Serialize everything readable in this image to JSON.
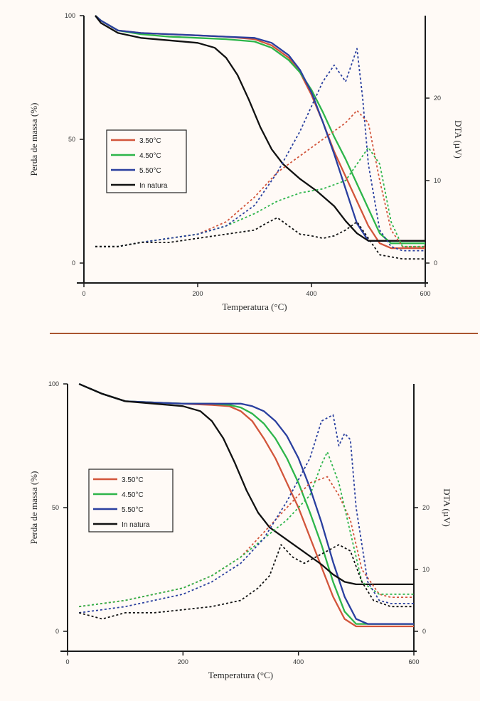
{
  "chart_data": [
    {
      "type": "line",
      "xlabel": "Temperatura (°C)",
      "ylabel_left": "Perda de massa (%)",
      "ylabel_right": "DTA (µV)",
      "xlim": [
        0,
        600
      ],
      "ylim_left": [
        0,
        100
      ],
      "ylim_right": [
        0,
        30
      ],
      "xticks": [
        "0",
        "200",
        "400",
        "600"
      ],
      "yticks_left": [
        "0",
        "50",
        "100"
      ],
      "yticks_right": [
        "0",
        "10",
        "20"
      ],
      "legend_position": "center-left",
      "series": [
        {
          "name": "3.50°C",
          "color": "#d2553b",
          "style": "solid",
          "axis": "left",
          "x": [
            20,
            30,
            60,
            100,
            150,
            200,
            250,
            300,
            330,
            360,
            380,
            400,
            420,
            440,
            460,
            480,
            500,
            520,
            540,
            560,
            600
          ],
          "y": [
            100,
            98,
            94,
            93,
            92.5,
            92,
            91.5,
            90.5,
            88,
            83,
            77,
            68,
            57,
            45,
            35,
            25,
            15,
            8,
            6,
            6,
            6
          ]
        },
        {
          "name": "4.50°C",
          "color": "#2db54a",
          "style": "solid",
          "axis": "left",
          "x": [
            20,
            30,
            60,
            100,
            150,
            200,
            250,
            300,
            330,
            360,
            380,
            400,
            420,
            440,
            460,
            480,
            500,
            520,
            540,
            560,
            600
          ],
          "y": [
            100,
            98,
            94,
            92.5,
            91.5,
            91,
            90.5,
            89.5,
            87,
            82,
            77,
            70,
            61,
            51,
            42,
            32,
            22,
            12,
            8,
            8,
            8
          ]
        },
        {
          "name": "5.50°C",
          "color": "#2a3f9f",
          "style": "solid",
          "axis": "left",
          "x": [
            20,
            30,
            60,
            100,
            150,
            200,
            250,
            300,
            330,
            360,
            380,
            400,
            420,
            440,
            460,
            480,
            500,
            520,
            560,
            600
          ],
          "y": [
            100,
            98,
            94,
            93,
            92.5,
            92,
            91.5,
            91,
            89,
            84,
            78,
            69,
            57,
            44,
            30,
            16,
            9,
            9,
            9,
            9
          ]
        },
        {
          "name": "In natura",
          "color": "#111111",
          "style": "solid",
          "axis": "left",
          "x": [
            20,
            30,
            60,
            100,
            150,
            200,
            230,
            250,
            270,
            290,
            310,
            330,
            350,
            380,
            410,
            440,
            460,
            480,
            500,
            520,
            560,
            600
          ],
          "y": [
            100,
            97,
            93,
            91,
            90,
            89,
            87,
            83,
            76,
            66,
            55,
            46,
            40,
            34,
            29,
            23,
            17,
            12,
            9,
            9,
            9,
            9
          ]
        },
        {
          "name": "",
          "color": "#d2553b",
          "style": "dash",
          "axis": "right",
          "x": [
            20,
            60,
            100,
            150,
            200,
            250,
            300,
            340,
            380,
            420,
            460,
            480,
            500,
            520,
            540,
            560,
            600
          ],
          "y": [
            2,
            2,
            2.5,
            3,
            3.5,
            5,
            8,
            11,
            13,
            15,
            17,
            18.5,
            17,
            10,
            4,
            2,
            2
          ]
        },
        {
          "name": "",
          "color": "#2db54a",
          "style": "dash",
          "axis": "right",
          "x": [
            20,
            60,
            100,
            150,
            200,
            250,
            300,
            340,
            380,
            420,
            460,
            480,
            500,
            520,
            540,
            560,
            600
          ],
          "y": [
            2,
            2,
            2.5,
            3,
            3.5,
            4.5,
            6,
            7.5,
            8.5,
            9,
            10,
            12,
            14,
            12,
            5,
            2,
            2
          ]
        },
        {
          "name": "",
          "color": "#2a3f9f",
          "style": "dash",
          "axis": "right",
          "x": [
            20,
            60,
            100,
            150,
            200,
            250,
            300,
            340,
            380,
            420,
            440,
            460,
            480,
            490,
            500,
            520,
            540,
            560,
            600
          ],
          "y": [
            2,
            2,
            2.5,
            3,
            3.5,
            4.5,
            7,
            11,
            16,
            22,
            24,
            22,
            26,
            20,
            12,
            4,
            2,
            1.5,
            1.5
          ]
        },
        {
          "name": "",
          "color": "#111111",
          "style": "dash",
          "axis": "right",
          "x": [
            20,
            60,
            100,
            150,
            200,
            250,
            300,
            320,
            340,
            360,
            380,
            400,
            420,
            440,
            460,
            480,
            500,
            520,
            560,
            600
          ],
          "y": [
            2,
            2,
            2.5,
            2.5,
            3,
            3.5,
            4,
            4.8,
            5.5,
            4.5,
            3.5,
            3.3,
            3,
            3.3,
            4,
            5,
            3,
            1,
            0.5,
            0.5
          ]
        }
      ]
    },
    {
      "type": "line",
      "xlabel": "Temperatura (°C)",
      "ylabel_left": "Perda de massa (%)",
      "ylabel_right": "DTA (µV)",
      "xlim": [
        0,
        600
      ],
      "ylim_left": [
        0,
        100
      ],
      "ylim_right": [
        0,
        40
      ],
      "xticks": [
        "0",
        "200",
        "400",
        "600"
      ],
      "yticks_left": [
        "0",
        "50",
        "100"
      ],
      "yticks_right": [
        "0",
        "10",
        "20"
      ],
      "legend_position": "center-left",
      "series": [
        {
          "name": "3.50°C",
          "color": "#d2553b",
          "style": "solid",
          "axis": "left",
          "x": [
            20,
            30,
            60,
            100,
            150,
            200,
            250,
            280,
            300,
            320,
            340,
            360,
            380,
            400,
            420,
            440,
            460,
            480,
            500,
            520,
            560,
            600
          ],
          "y": [
            100,
            99,
            96,
            93,
            92.5,
            92,
            91.5,
            91,
            89,
            85,
            78,
            70,
            60,
            50,
            38,
            26,
            14,
            5,
            2,
            2,
            2,
            2
          ]
        },
        {
          "name": "4.50°C",
          "color": "#2db54a",
          "style": "solid",
          "axis": "left",
          "x": [
            20,
            30,
            60,
            100,
            150,
            200,
            250,
            280,
            300,
            320,
            340,
            360,
            380,
            400,
            420,
            440,
            460,
            480,
            500,
            520,
            560,
            600
          ],
          "y": [
            100,
            99,
            96,
            93,
            92.5,
            92,
            92,
            91.5,
            90.5,
            88,
            84,
            78,
            70,
            60,
            48,
            35,
            20,
            8,
            3,
            3,
            3,
            3
          ]
        },
        {
          "name": "5.50°C",
          "color": "#2a3f9f",
          "style": "solid",
          "axis": "left",
          "x": [
            20,
            30,
            60,
            100,
            150,
            200,
            250,
            280,
            300,
            320,
            340,
            360,
            380,
            400,
            420,
            440,
            460,
            480,
            500,
            520,
            560,
            600
          ],
          "y": [
            100,
            99,
            96,
            93,
            92.5,
            92,
            92,
            92,
            92,
            91,
            89,
            85,
            79,
            70,
            58,
            44,
            28,
            14,
            5,
            3,
            3,
            3
          ]
        },
        {
          "name": "In natura",
          "color": "#111111",
          "style": "solid",
          "axis": "left",
          "x": [
            20,
            30,
            60,
            100,
            150,
            200,
            230,
            250,
            270,
            290,
            310,
            330,
            350,
            380,
            410,
            440,
            460,
            480,
            500,
            520,
            560,
            600
          ],
          "y": [
            100,
            99,
            96,
            93,
            92,
            91,
            89,
            85,
            78,
            68,
            57,
            48,
            42,
            37,
            32,
            27,
            23,
            20,
            19,
            19,
            19,
            19
          ]
        },
        {
          "name": "",
          "color": "#d2553b",
          "style": "dash",
          "axis": "right",
          "x": [
            20,
            60,
            100,
            150,
            200,
            250,
            300,
            340,
            380,
            420,
            450,
            470,
            490,
            510,
            540,
            560,
            600
          ],
          "y": [
            4,
            4.5,
            5,
            6,
            7,
            9,
            12,
            16,
            20,
            24,
            25,
            22,
            18,
            10,
            6,
            5.5,
            5.5
          ]
        },
        {
          "name": "",
          "color": "#2db54a",
          "style": "dash",
          "axis": "right",
          "x": [
            20,
            60,
            100,
            150,
            200,
            250,
            300,
            340,
            380,
            420,
            440,
            450,
            470,
            490,
            510,
            540,
            560,
            600
          ],
          "y": [
            4,
            4.5,
            5,
            6,
            7,
            9,
            12,
            15,
            18,
            22,
            27,
            29,
            24,
            16,
            8,
            6,
            6,
            6
          ]
        },
        {
          "name": "",
          "color": "#2a3f9f",
          "style": "dash",
          "axis": "right",
          "x": [
            20,
            60,
            100,
            150,
            200,
            250,
            300,
            340,
            380,
            420,
            440,
            460,
            470,
            480,
            490,
            500,
            520,
            540,
            560,
            600
          ],
          "y": [
            3,
            3.5,
            4,
            5,
            6,
            8,
            11,
            15,
            21,
            28,
            34,
            35,
            30,
            32,
            31,
            20,
            8,
            5,
            4.5,
            4.5
          ]
        },
        {
          "name": "",
          "color": "#111111",
          "style": "dash",
          "axis": "right",
          "x": [
            20,
            60,
            100,
            150,
            200,
            250,
            300,
            330,
            350,
            370,
            390,
            410,
            430,
            450,
            470,
            490,
            510,
            530,
            560,
            600
          ],
          "y": [
            3,
            2,
            3,
            3,
            3.5,
            4,
            5,
            7,
            9,
            14,
            12,
            11,
            12,
            13,
            14,
            13,
            8,
            5,
            4,
            4
          ]
        }
      ]
    }
  ]
}
